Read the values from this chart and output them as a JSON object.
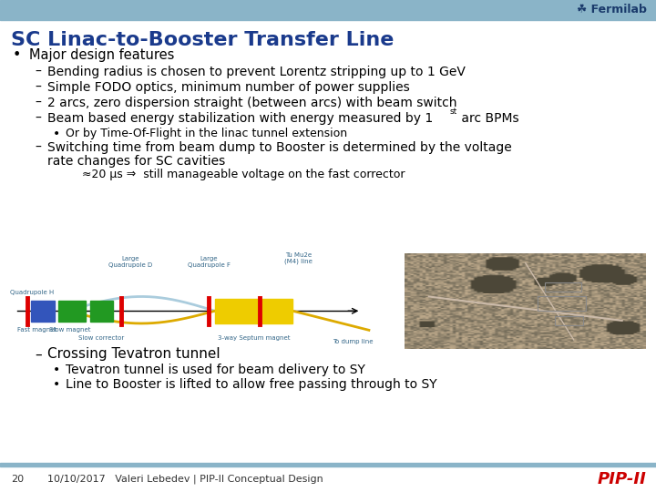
{
  "bg_color": "#ffffff",
  "header_bar_color": "#8ab4c8",
  "footer_bar_color": "#8ab4c8",
  "fermilab_text": "☘ Fermilab",
  "fermilab_color": "#1a3a6b",
  "title": "SC Linac-to-Booster Transfer Line",
  "title_color": "#1a3a8c",
  "title_fontsize": 16,
  "bullet_fontsize": 10.5,
  "dash_fontsize": 10,
  "sub_fontsize": 9,
  "footer_page": "20",
  "footer_date": "10/10/2017",
  "footer_author": "Valeri Lebedev | PIP-II Conceptual Design",
  "footer_pip2_color": "#cc0000",
  "footer_fontsize": 8,
  "diagram_beam_color": "#000000",
  "diagram_red_bar_color": "#dd0000",
  "diagram_blue_color": "#3355bb",
  "diagram_green_color": "#229922",
  "diagram_yellow_color": "#eecc00",
  "diagram_arc_blue": "#aaccdd",
  "diagram_arc_yellow": "#ddaa00",
  "diagram_label_color": "#336688"
}
